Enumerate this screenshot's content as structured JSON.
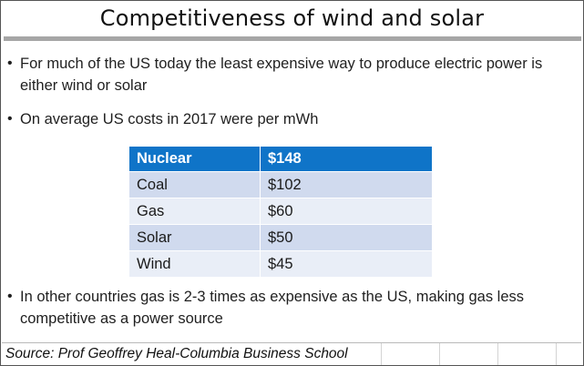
{
  "slide": {
    "title": "Competitiveness of wind and solar",
    "bullets": [
      "For much of the US today the least expensive way to produce electric power is either wind or solar",
      "On average US costs in 2017 were per mWh",
      "In other countries gas is 2-3 times as expensive as the US, making gas less competitive as a power source"
    ],
    "bullet_glyph": "•"
  },
  "table": {
    "header": [
      "Nuclear",
      "$148"
    ],
    "rows": [
      [
        "Coal",
        "$102"
      ],
      [
        "Gas",
        "$60"
      ],
      [
        "Solar",
        "$50"
      ],
      [
        "Wind",
        "$45"
      ]
    ]
  },
  "source": "Source: Prof Geoffrey Heal-Columbia Business School",
  "colors": {
    "header_fill": "#0f74c8",
    "row_band_dark": "#d0daee",
    "row_band_light": "#e9eef7",
    "title_rule": "#a6a6a6"
  }
}
